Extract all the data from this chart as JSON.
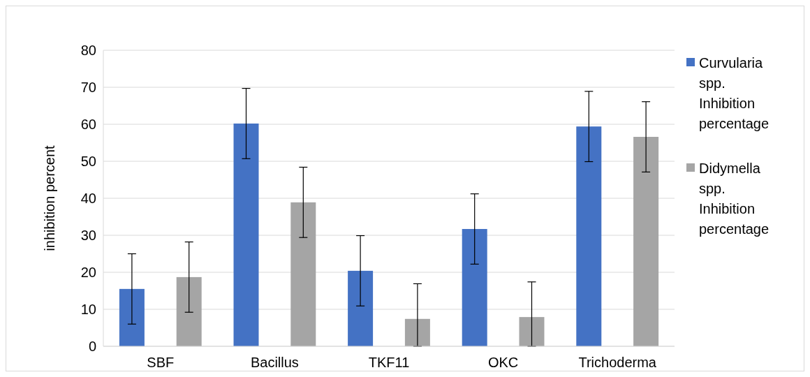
{
  "chart_data": {
    "type": "bar",
    "ylabel": "inhibition percent",
    "categories": [
      "SBF",
      "Bacillus",
      "TKF11",
      "OKC",
      "Trichoderma"
    ],
    "series": [
      {
        "name": "Curvularia spp. Inhibition percentage",
        "color": "#4472c4",
        "values": [
          15.5,
          60.2,
          20.4,
          31.7,
          59.4
        ],
        "errors": [
          9.5,
          9.5,
          9.5,
          9.5,
          9.5
        ]
      },
      {
        "name": "Didymella spp. Inhibition percentage",
        "color": "#a5a5a5",
        "values": [
          18.7,
          38.9,
          7.4,
          7.9,
          56.6
        ],
        "errors": [
          9.5,
          9.5,
          [
            0,
            16.9
          ],
          [
            0,
            17.4
          ],
          9.5
        ]
      }
    ],
    "ylim": [
      0,
      80
    ],
    "yticks": [
      0,
      10,
      20,
      30,
      40,
      50,
      60,
      70,
      80
    ],
    "grid": "y",
    "legend": "right"
  }
}
